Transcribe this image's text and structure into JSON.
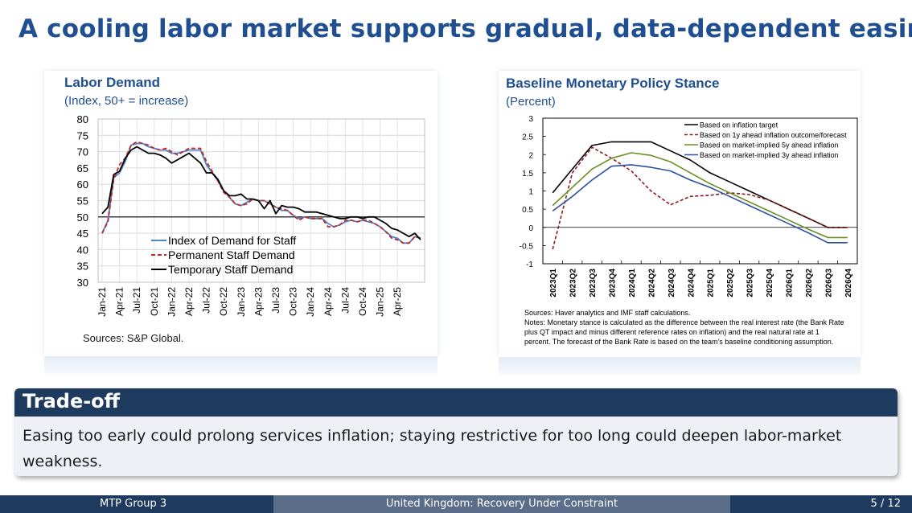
{
  "slide": {
    "title": "A cooling labor market supports gradual, data-dependent easing"
  },
  "left_chart": {
    "title": "Labor Demand",
    "subtitle": "(Index, 50+ = increase)",
    "source": "Sources: S&P Global."
  },
  "right_chart": {
    "title": "Baseline Monetary Policy Stance",
    "subtitle": "(Percent)",
    "notes": [
      "Sources: Haver analytics and IMF staff calculations.",
      "Notes: Monetary stance is calculated as the difference between the real interest rate (the Bank Rate",
      "plus QT impact and minus different reference rates on inflation) and the real natural rate at 1",
      "percent. The forecast of the Bank Rate is based on the team's baseline conditioning assumption."
    ]
  },
  "chart_data": [
    {
      "type": "line",
      "title": "Labor Demand",
      "subtitle": "(Index, 50+ = increase)",
      "ylim": [
        30,
        80
      ],
      "yticks": [
        30,
        35,
        40,
        45,
        50,
        55,
        60,
        65,
        70,
        75,
        80
      ],
      "x_tick_labels": [
        "Jan-21",
        "Apr-21",
        "Jul-21",
        "Oct-21",
        "Jan-22",
        "Apr-22",
        "Jul-22",
        "Oct-22",
        "Jan-23",
        "Apr-23",
        "Jul-23",
        "Oct-23",
        "Jan-24",
        "Apr-24",
        "Jul-24",
        "Oct-24",
        "Jan-25",
        "Apr-25"
      ],
      "reference_line": 50,
      "legend_position": "bottom-left",
      "grid": true,
      "series": [
        {
          "name": "Index of Demand for Staff",
          "color": "#4a86c8",
          "dash": "solid",
          "values": [
            45,
            49,
            62,
            63.5,
            67,
            72,
            72.5,
            72.5,
            71.5,
            71,
            70.5,
            70.5,
            69.5,
            69.5,
            70,
            70.5,
            70.5,
            70.5,
            66,
            63.5,
            61,
            58,
            56,
            54,
            53.5,
            54.5,
            55.5,
            55,
            55,
            54,
            53,
            52,
            52,
            50.5,
            49.5,
            50,
            49.5,
            49.5,
            49.5,
            48,
            47,
            47.5,
            48.5,
            49,
            48.5,
            49,
            48.5,
            48,
            47,
            45.5,
            44,
            43.5,
            42,
            42,
            44,
            43.5
          ]
        },
        {
          "name": "Permanent Staff Demand",
          "color": "#c0282c",
          "dash": "dashed",
          "values": [
            45,
            48.5,
            61.5,
            66,
            68,
            72,
            73,
            72.5,
            72,
            71,
            70.5,
            71,
            70,
            69,
            70,
            71,
            71,
            71,
            67,
            64,
            61,
            57.5,
            56,
            54,
            53.5,
            54,
            55.5,
            55,
            55,
            54,
            53,
            52.5,
            52,
            50.5,
            49,
            50,
            49.5,
            49.5,
            49.5,
            47,
            47,
            47.5,
            49,
            49,
            48.5,
            49,
            49,
            48,
            47,
            45.5,
            43.5,
            43,
            42,
            42,
            44,
            43.5
          ]
        },
        {
          "name": "Temporary Staff Demand",
          "color": "#000000",
          "dash": "solid",
          "values": [
            51,
            53,
            63,
            64,
            68,
            70.5,
            71.5,
            70.5,
            69.5,
            69.5,
            69,
            68,
            66.5,
            67.5,
            68.5,
            69.5,
            68,
            66.5,
            63.5,
            63.5,
            61.5,
            58,
            56.5,
            56.5,
            57,
            55.5,
            55.5,
            55,
            52.5,
            55,
            51,
            53.5,
            53,
            53,
            52.5,
            51.5,
            51.5,
            51.5,
            51,
            50.5,
            50,
            49.5,
            49.5,
            50,
            50,
            49.5,
            50,
            50,
            49,
            48,
            46.5,
            46,
            45,
            44,
            45,
            43
          ]
        }
      ]
    },
    {
      "type": "line",
      "title": "Baseline Monetary Policy Stance",
      "subtitle": "(Percent)",
      "ylim": [
        -1,
        3
      ],
      "yticks": [
        -1,
        -0.5,
        0,
        0.5,
        1,
        1.5,
        2,
        2.5,
        3
      ],
      "categories": [
        "2023Q1",
        "2023Q2",
        "2023Q3",
        "2023Q4",
        "2024Q1",
        "2024Q2",
        "2024Q3",
        "2024Q4",
        "2025Q1",
        "2025Q2",
        "2025Q3",
        "2025Q4",
        "2026Q1",
        "2026Q2",
        "2026Q3",
        "2026Q4"
      ],
      "legend_position": "top-right",
      "grid": false,
      "series": [
        {
          "name": "Based on inflation target",
          "color": "#000000",
          "dash": "solid",
          "values": [
            0.95,
            1.6,
            2.25,
            2.35,
            2.35,
            2.35,
            2.1,
            1.85,
            1.5,
            1.25,
            1.0,
            0.75,
            0.5,
            0.25,
            0.0,
            0.0
          ]
        },
        {
          "name": "Based on 1y ahead inflation outcome/forecast",
          "color": "#8b1a1a",
          "dash": "dashed",
          "values": [
            -0.6,
            1.5,
            2.2,
            1.9,
            1.55,
            1.0,
            0.62,
            0.85,
            0.88,
            0.95,
            0.9,
            0.75,
            0.5,
            0.25,
            0.0,
            0.0
          ]
        },
        {
          "name": "Based on market-implied 5y ahead inflation",
          "color": "#6b8e23",
          "dash": "solid",
          "values": [
            0.6,
            1.1,
            1.6,
            1.9,
            2.05,
            1.98,
            1.8,
            1.5,
            1.2,
            0.95,
            0.7,
            0.45,
            0.2,
            -0.05,
            -0.28,
            -0.28
          ]
        },
        {
          "name": "Based on market-implied 3y ahead inflation",
          "color": "#2b4fa3",
          "dash": "solid",
          "values": [
            0.45,
            0.85,
            1.3,
            1.68,
            1.72,
            1.65,
            1.55,
            1.3,
            1.1,
            0.85,
            0.6,
            0.35,
            0.1,
            -0.15,
            -0.42,
            -0.42
          ]
        }
      ]
    }
  ],
  "tradeoff": {
    "heading": "Trade-off",
    "text": "Easing too early could prolong services inflation; staying restrictive for too long could deepen labor-market weakness."
  },
  "footer": {
    "author": "MTP Group 3",
    "title": "United Kingdom: Recovery Under Constraint",
    "page": "5 / 12"
  }
}
